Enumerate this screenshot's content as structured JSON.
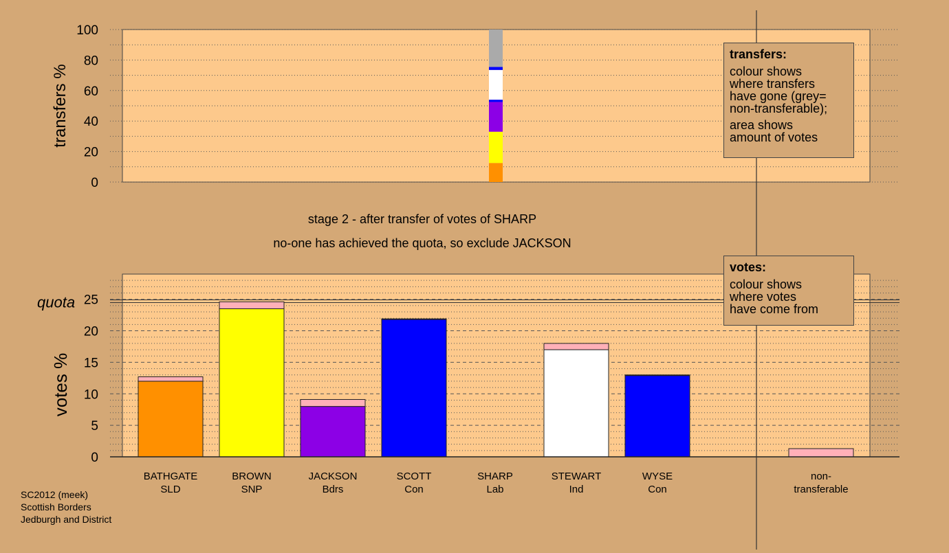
{
  "stage_title": "stage 2 - after transfer of votes of SHARP",
  "stage_note": "no-one has achieved the quota, so exclude JACKSON",
  "colors": {
    "background": "#d4a876",
    "plot_background": "#fdc98c",
    "BATHGATE": "#ff9000",
    "BROWN": "#ffff00",
    "JACKSON": "#8c00e6",
    "SCOTT": "#0000ff",
    "SHARP": "#ffb0b8",
    "STEWART": "#ffffff",
    "WYSE": "#0000ff",
    "non_transferable": "#aaaaaa"
  },
  "transfers_legend": {
    "title": "transfers:",
    "lines": [
      "colour shows",
      "where transfers",
      "have gone (grey=",
      "non-transferable);"
    ],
    "lines2": [
      "area shows",
      "amount of votes"
    ]
  },
  "votes_legend": {
    "title": "votes:",
    "lines": [
      "colour shows",
      "where votes",
      "have come from"
    ]
  },
  "footer": {
    "line1": "SC2012 (meek)",
    "line2": "Scottish Borders",
    "line3": "Jedburgh and District"
  },
  "chart_data": [
    {
      "type": "bar",
      "stacked": true,
      "ylabel": "transfers %",
      "ylim": [
        0,
        100
      ],
      "yticks": [
        0,
        20,
        40,
        60,
        80,
        100
      ],
      "grid": "dotted horizontal",
      "legend_placement": "top-right",
      "bar_from": "SHARP",
      "segments": [
        {
          "to": "BATHGATE",
          "color_key": "BATHGATE",
          "value": 12.5
        },
        {
          "to": "BROWN",
          "color_key": "BROWN",
          "value": 20.5
        },
        {
          "to": "JACKSON",
          "color_key": "JACKSON",
          "value": 19.5
        },
        {
          "to": "SCOTT",
          "color_key": "SCOTT",
          "value": 1.5
        },
        {
          "to": "STEWART",
          "color_key": "STEWART",
          "value": 19.5
        },
        {
          "to": "WYSE",
          "color_key": "WYSE",
          "value": 2.0
        },
        {
          "to": "non-transferable",
          "color_key": "non_transferable",
          "value": 24.5
        }
      ]
    },
    {
      "type": "bar",
      "stacked": true,
      "ylabel": "votes %",
      "ylim": [
        0,
        29
      ],
      "yticks": [
        0,
        5,
        10,
        15,
        20,
        25
      ],
      "quota": 24.7,
      "quota_label": "quota",
      "grid": "dotted horizontal",
      "legend_placement": "top-right",
      "categories": [
        {
          "name": "BATHGATE",
          "party": "SLD",
          "segments": [
            {
              "from": "BATHGATE",
              "value": 12.0
            },
            {
              "from": "SHARP",
              "value": 0.7
            }
          ]
        },
        {
          "name": "BROWN",
          "party": "SNP",
          "segments": [
            {
              "from": "BROWN",
              "value": 23.5
            },
            {
              "from": "SHARP",
              "value": 1.1
            }
          ]
        },
        {
          "name": "JACKSON",
          "party": "Bdrs",
          "segments": [
            {
              "from": "JACKSON",
              "value": 8.0
            },
            {
              "from": "SHARP",
              "value": 1.1
            }
          ]
        },
        {
          "name": "SCOTT",
          "party": "Con",
          "segments": [
            {
              "from": "SCOTT",
              "value": 21.8
            },
            {
              "from": "SHARP",
              "value": 0.1
            }
          ]
        },
        {
          "name": "SHARP",
          "party": "Lab",
          "segments": []
        },
        {
          "name": "STEWART",
          "party": "Ind",
          "segments": [
            {
              "from": "STEWART",
              "value": 17.0
            },
            {
              "from": "SHARP",
              "value": 1.0
            }
          ]
        },
        {
          "name": "WYSE",
          "party": "Con",
          "segments": [
            {
              "from": "WYSE",
              "value": 12.9
            },
            {
              "from": "SHARP",
              "value": 0.1
            }
          ]
        }
      ],
      "non_transferable": {
        "label_line1": "non-",
        "label_line2": "transferable",
        "value": 1.3,
        "color_key": "SHARP"
      }
    }
  ]
}
